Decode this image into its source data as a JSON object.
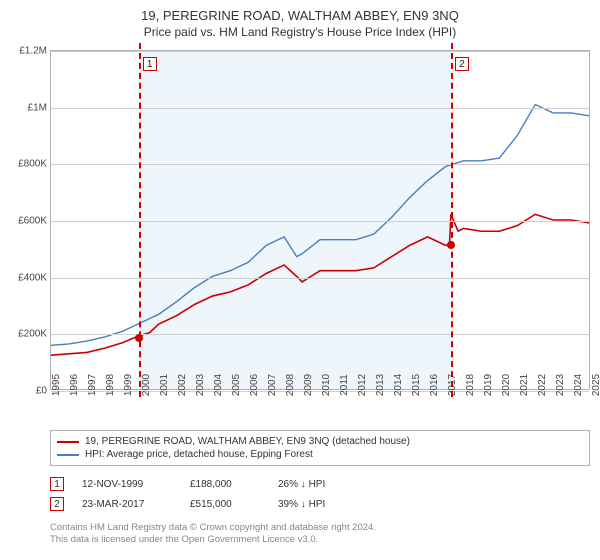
{
  "title": "19, PEREGRINE ROAD, WALTHAM ABBEY, EN9 3NQ",
  "subtitle": "Price paid vs. HM Land Registry's House Price Index (HPI)",
  "chart": {
    "type": "line",
    "background_color": "#ffffff",
    "plot_band_color": "#eef5fb",
    "grid_color": "#cfcfcf",
    "border_color": "#b0b0b0",
    "x": {
      "min": 1995,
      "max": 2025,
      "ticks": [
        1995,
        1996,
        1997,
        1998,
        1999,
        2000,
        2001,
        2002,
        2003,
        2004,
        2005,
        2006,
        2007,
        2008,
        2009,
        2010,
        2011,
        2012,
        2013,
        2014,
        2015,
        2016,
        2017,
        2018,
        2019,
        2020,
        2021,
        2022,
        2023,
        2024,
        2025
      ]
    },
    "y": {
      "min": 0,
      "max": 1200000,
      "ticks": [
        0,
        200000,
        400000,
        600000,
        800000,
        1000000,
        1200000
      ],
      "tick_labels": [
        "£0",
        "£200K",
        "£400K",
        "£600K",
        "£800K",
        "£1M",
        "£1.2M"
      ]
    },
    "series": [
      {
        "id": "price_paid",
        "label": "19, PEREGRINE ROAD, WALTHAM ABBEY, EN9 3NQ (detached house)",
        "color": "#cc0000",
        "width": 1.6,
        "points": [
          [
            1995,
            120000
          ],
          [
            1996,
            125000
          ],
          [
            1997,
            130000
          ],
          [
            1998,
            145000
          ],
          [
            1999,
            165000
          ],
          [
            1999.87,
            188000
          ],
          [
            2000.5,
            200000
          ],
          [
            2001,
            230000
          ],
          [
            2002,
            260000
          ],
          [
            2003,
            300000
          ],
          [
            2004,
            330000
          ],
          [
            2005,
            345000
          ],
          [
            2006,
            370000
          ],
          [
            2007,
            410000
          ],
          [
            2008,
            440000
          ],
          [
            2008.7,
            400000
          ],
          [
            2009,
            380000
          ],
          [
            2010,
            420000
          ],
          [
            2011,
            420000
          ],
          [
            2012,
            420000
          ],
          [
            2013,
            430000
          ],
          [
            2014,
            470000
          ],
          [
            2015,
            510000
          ],
          [
            2016,
            540000
          ],
          [
            2017,
            510000
          ],
          [
            2017.22,
            515000
          ],
          [
            2017.3,
            620000
          ],
          [
            2017.7,
            560000
          ],
          [
            2018,
            570000
          ],
          [
            2019,
            560000
          ],
          [
            2020,
            560000
          ],
          [
            2021,
            580000
          ],
          [
            2022,
            620000
          ],
          [
            2023,
            600000
          ],
          [
            2024,
            600000
          ],
          [
            2025,
            590000
          ]
        ]
      },
      {
        "id": "hpi",
        "label": "HPI: Average price, detached house, Epping Forest",
        "color": "#4a7ebb",
        "width": 1.4,
        "points": [
          [
            1995,
            155000
          ],
          [
            1996,
            160000
          ],
          [
            1997,
            170000
          ],
          [
            1998,
            185000
          ],
          [
            1999,
            205000
          ],
          [
            2000,
            235000
          ],
          [
            2001,
            265000
          ],
          [
            2002,
            310000
          ],
          [
            2003,
            360000
          ],
          [
            2004,
            400000
          ],
          [
            2005,
            420000
          ],
          [
            2006,
            450000
          ],
          [
            2007,
            510000
          ],
          [
            2008,
            540000
          ],
          [
            2008.7,
            470000
          ],
          [
            2009,
            480000
          ],
          [
            2010,
            530000
          ],
          [
            2011,
            530000
          ],
          [
            2012,
            530000
          ],
          [
            2013,
            550000
          ],
          [
            2014,
            610000
          ],
          [
            2015,
            680000
          ],
          [
            2016,
            740000
          ],
          [
            2017,
            790000
          ],
          [
            2018,
            810000
          ],
          [
            2019,
            810000
          ],
          [
            2020,
            820000
          ],
          [
            2021,
            900000
          ],
          [
            2022,
            1010000
          ],
          [
            2023,
            980000
          ],
          [
            2024,
            980000
          ],
          [
            2025,
            970000
          ]
        ]
      }
    ],
    "markers": [
      {
        "n": "1",
        "x": 1999.87,
        "y": 188000,
        "color": "#cc0000"
      },
      {
        "n": "2",
        "x": 2017.22,
        "y": 515000,
        "color": "#cc0000"
      }
    ]
  },
  "events": [
    {
      "n": "1",
      "date": "12-NOV-1999",
      "price": "£188,000",
      "delta": "26% ↓ HPI",
      "color": "#cc0000"
    },
    {
      "n": "2",
      "date": "23-MAR-2017",
      "price": "£515,000",
      "delta": "39% ↓ HPI",
      "color": "#cc0000"
    }
  ],
  "footnote_line1": "Contains HM Land Registry data © Crown copyright and database right 2024.",
  "footnote_line2": "This data is licensed under the Open Government Licence v3.0."
}
